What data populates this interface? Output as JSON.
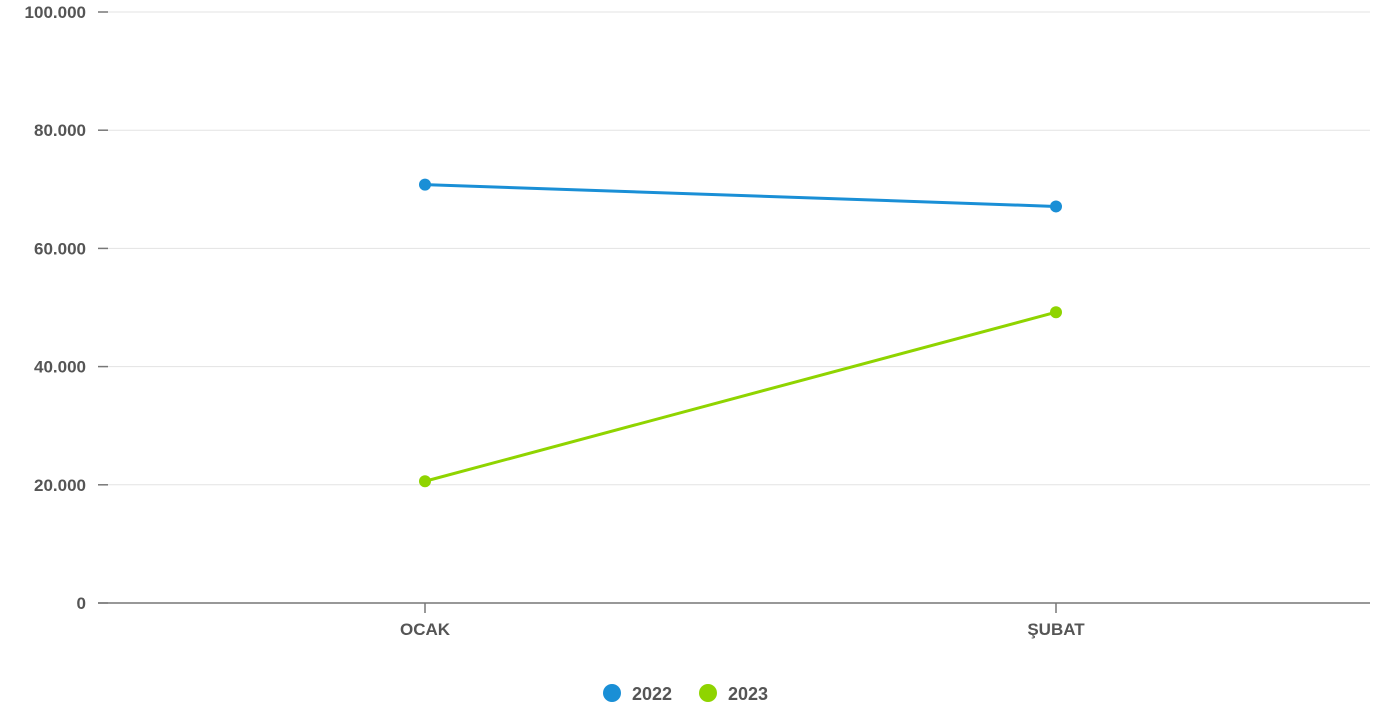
{
  "chart_data": {
    "type": "line",
    "title": "",
    "xlabel": "",
    "ylabel": "",
    "categories": [
      "OCAK",
      "ŞUBAT"
    ],
    "y_ticks": [
      "0",
      "20.000",
      "40.000",
      "60.000",
      "80.000",
      "100.000"
    ],
    "y_tick_values": [
      0,
      20000,
      40000,
      60000,
      80000,
      100000
    ],
    "ylim": [
      0,
      100000
    ],
    "grid": true,
    "legend_position": "bottom-center",
    "series": [
      {
        "name": "2022",
        "color": "#1a8fd6",
        "values": [
          70800,
          67100
        ]
      },
      {
        "name": "2023",
        "color": "#8fd400",
        "values": [
          20600,
          49200
        ]
      }
    ]
  }
}
